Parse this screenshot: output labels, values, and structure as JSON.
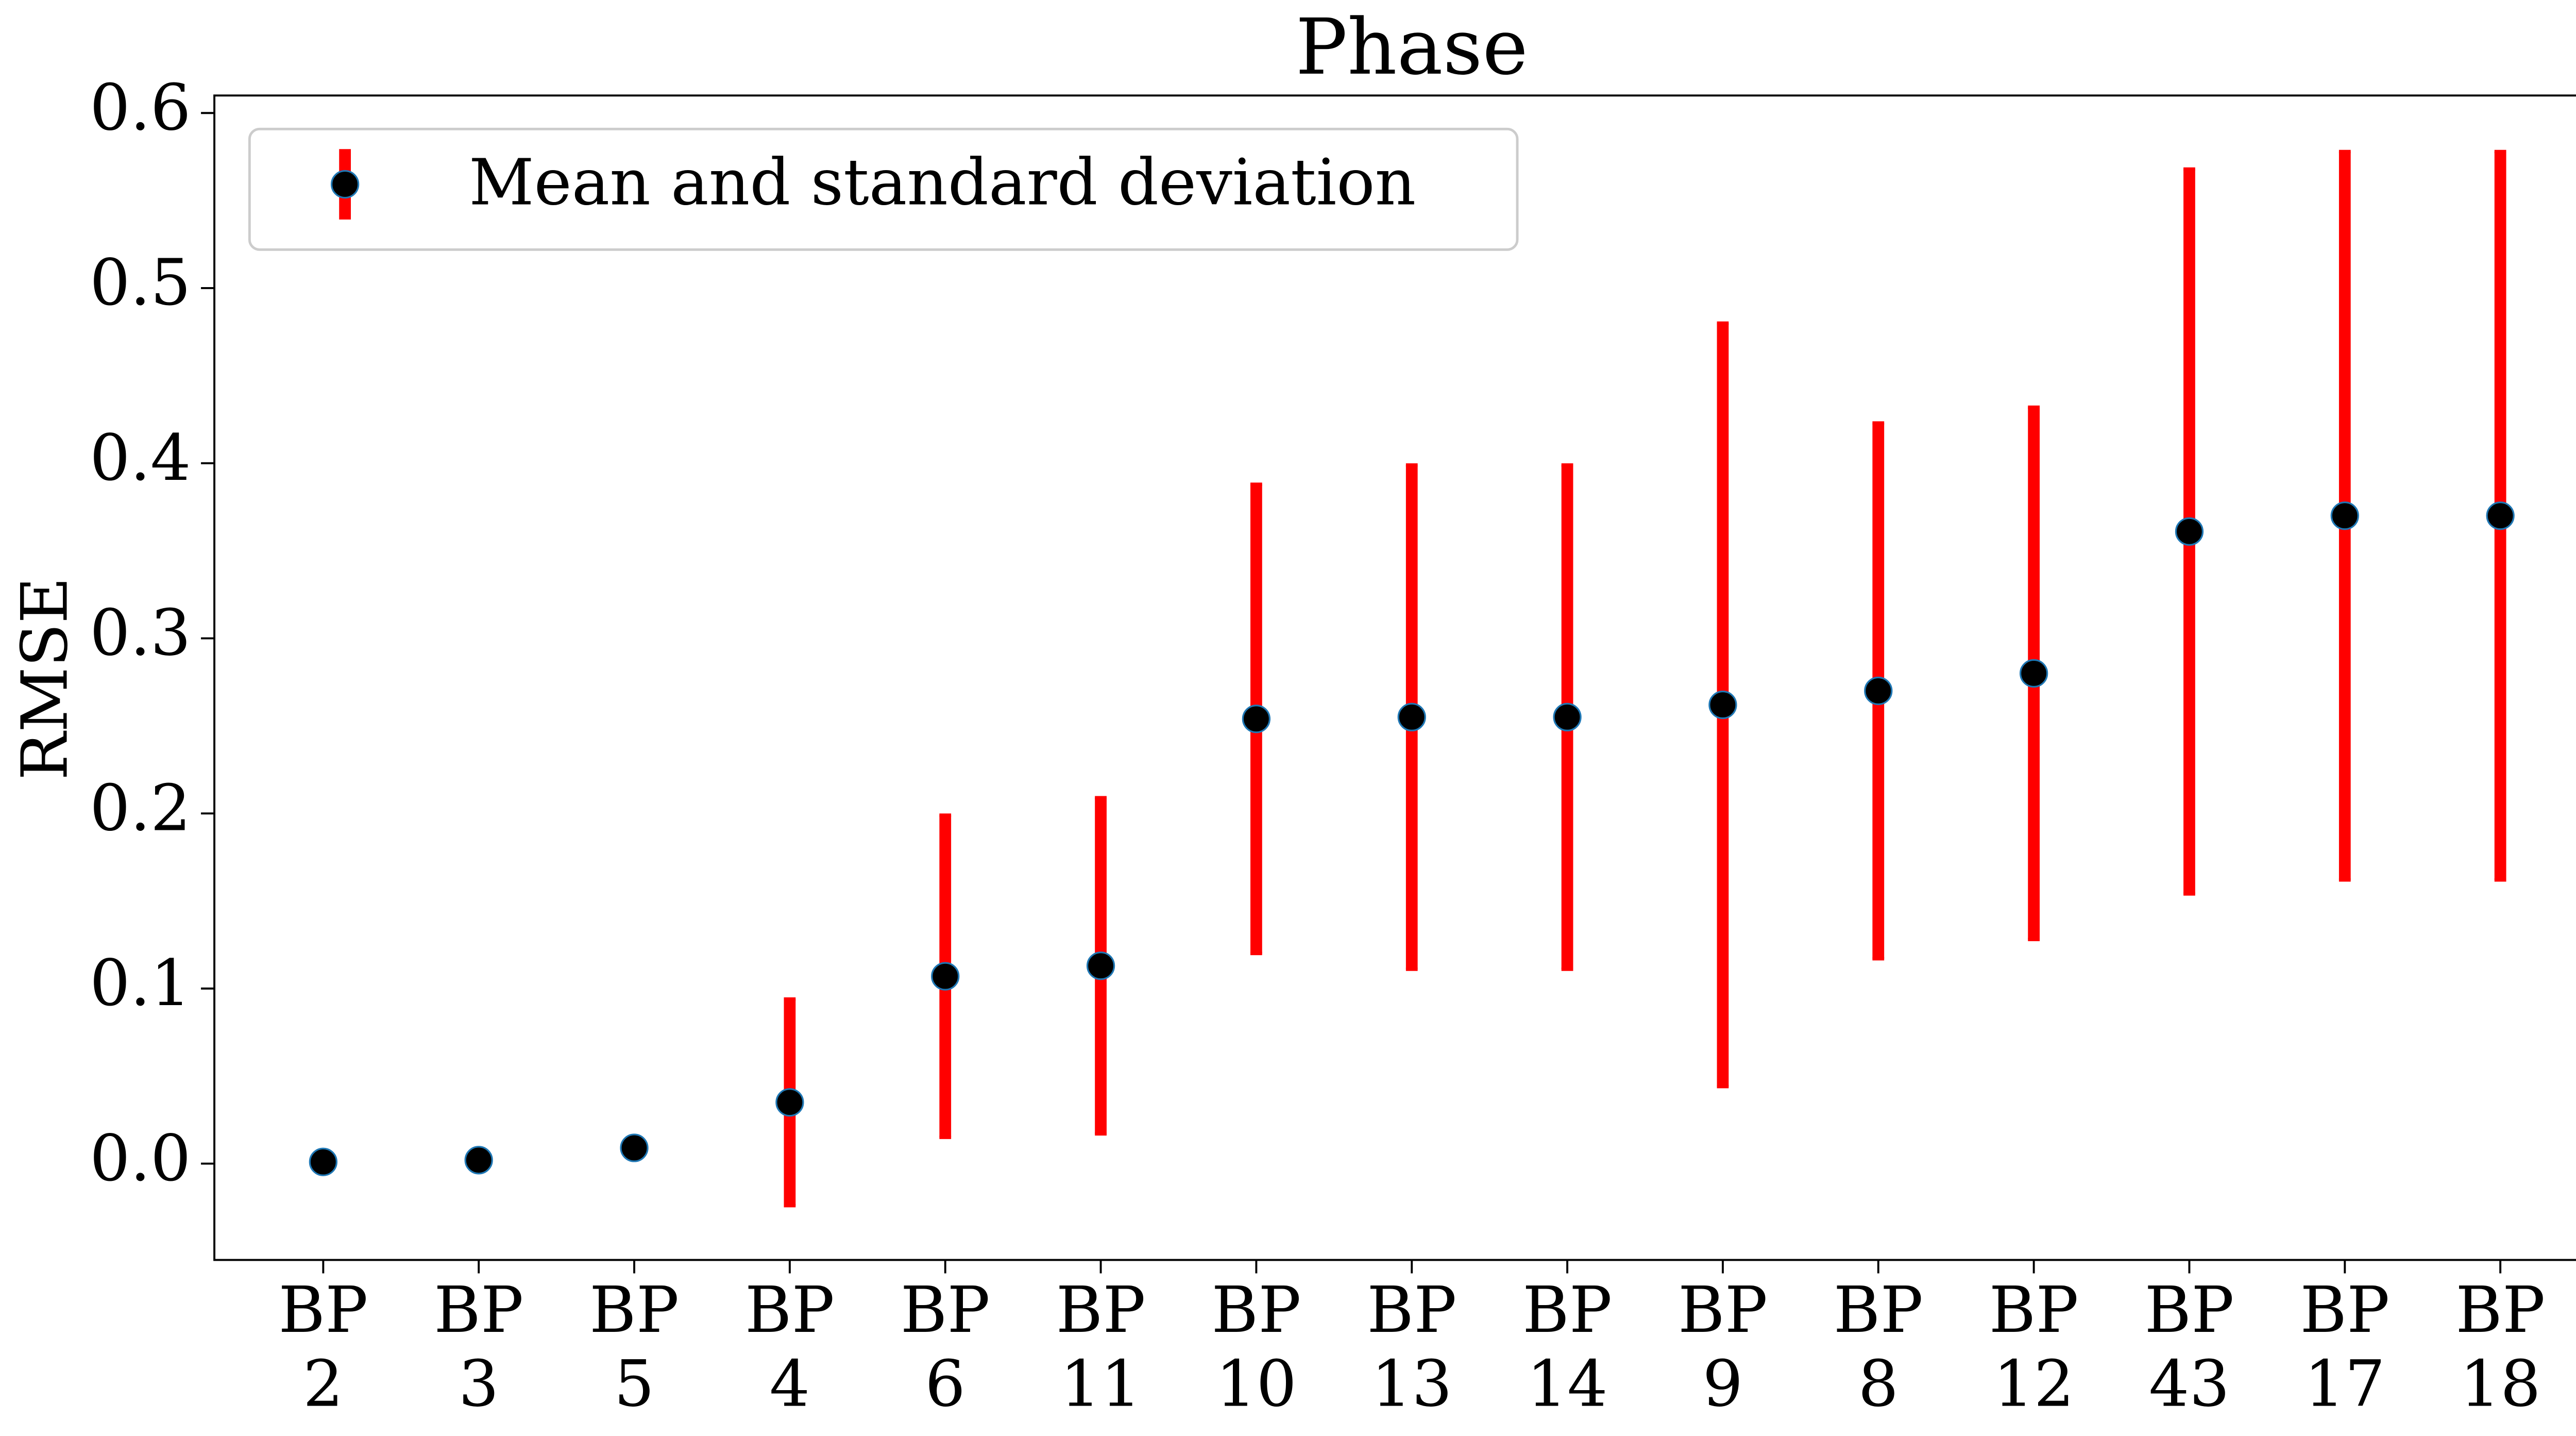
{
  "chart_data": {
    "type": "errorbar",
    "title": "Phase",
    "y_label": "RMSE",
    "categories": [
      "BP\n2",
      "BP\n3",
      "BP\n5",
      "BP\n4",
      "BP\n6",
      "BP\n11",
      "BP\n10",
      "BP\n13",
      "BP\n14",
      "BP\n9",
      "BP\n8",
      "BP\n12",
      "BP\n43",
      "BP\n17",
      "BP\n18"
    ],
    "series": [
      {
        "name": "Mean and standard deviation",
        "color": "#000000",
        "error_color": "#ff0000",
        "values": [
          0.001,
          0.002,
          0.009,
          0.035,
          0.107,
          0.113,
          0.254,
          0.255,
          0.255,
          0.262,
          0.27,
          0.28,
          0.361,
          0.37,
          0.37
        ],
        "errors": [
          0,
          0,
          0,
          0.059,
          0.092,
          0.096,
          0.134,
          0.144,
          0.144,
          0.218,
          0.153,
          0.152,
          0.207,
          0.208,
          0.208
        ]
      }
    ],
    "ylim": [
      -0.055,
      0.61
    ],
    "yticks": [
      {
        "value": 0,
        "label": "0.0"
      },
      0.1,
      0.2,
      0.3,
      0.4,
      0.5,
      0.6
    ],
    "grid": false,
    "legend_position": "upper-left"
  }
}
